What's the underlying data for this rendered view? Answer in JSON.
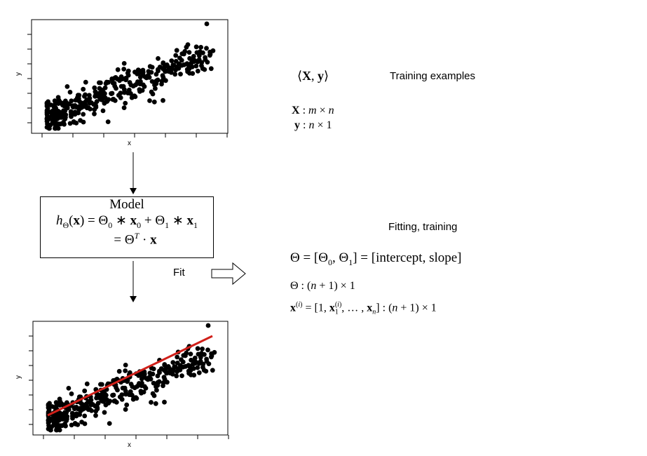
{
  "top_plot": {
    "xlabel": "x",
    "ylabel": "y"
  },
  "bottom_plot": {
    "xlabel": "x",
    "ylabel": "y",
    "fit_line_color": "#d0201a"
  },
  "model": {
    "title": "Model",
    "eq_line1": "hΘ(x) = Θ0 ∗ x0 + Θ1 ∗ x1",
    "eq_line2": "= ΘT · x"
  },
  "fit_label": "Fit",
  "training": {
    "heading": "Training examples",
    "pair": "⟨X, y⟩",
    "X_dims": "X : m × n",
    "y_dims": "y : n × 1"
  },
  "fitting": {
    "heading": "Fitting, training",
    "theta_def": "Θ = [Θ0, Θ1] = [intercept, slope]",
    "theta_dims": "Θ : (n + 1) × 1",
    "x_def": "x(i) = [1, x1(i), … , xn] : (n + 1) × 1"
  },
  "colors": {
    "points": "#000000",
    "fit_line": "#d0201a"
  },
  "chart_data": [
    {
      "type": "scatter",
      "xlabel": "x",
      "ylabel": "y",
      "note": "point cloud positively correlated; values not labeled",
      "grid": false
    },
    {
      "type": "scatter",
      "xlabel": "x",
      "ylabel": "y",
      "grid": false,
      "fit_line": true
    }
  ]
}
